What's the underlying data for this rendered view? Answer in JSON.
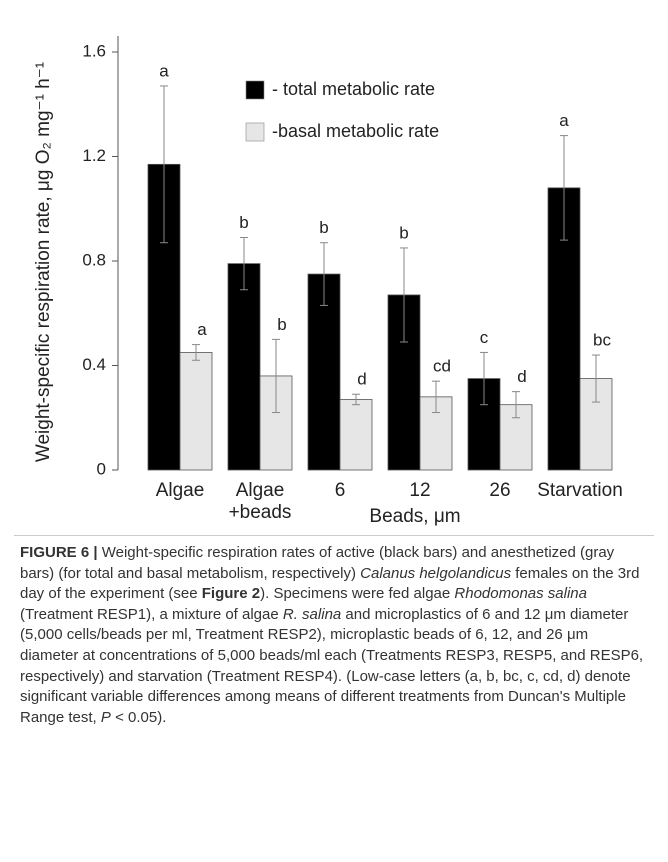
{
  "chart_data": {
    "type": "bar",
    "ylabel": "Weight-specific respiration rate, μg O₂ mg⁻¹ h⁻¹",
    "xlabel": "Beads, μm",
    "categories": [
      "Algae",
      "Algae\n+beads",
      "6",
      "12",
      "26",
      "Starvation"
    ],
    "series": [
      {
        "name": "- total metabolic rate",
        "color": "#000000",
        "values": [
          1.17,
          0.79,
          0.75,
          0.67,
          0.35,
          1.08
        ],
        "errors": [
          0.3,
          0.1,
          0.12,
          0.18,
          0.1,
          0.2
        ],
        "letters": [
          "a",
          "b",
          "b",
          "b",
          "c",
          "a"
        ]
      },
      {
        "name": "-basal metabolic rate",
        "color": "#e6e6e6",
        "values": [
          0.45,
          0.36,
          0.27,
          0.28,
          0.25,
          0.35
        ],
        "errors": [
          0.03,
          0.14,
          0.02,
          0.06,
          0.05,
          0.09
        ],
        "letters": [
          "a",
          "b",
          "d",
          "cd",
          "d",
          "bc"
        ]
      }
    ],
    "ylim": [
      0,
      1.6
    ],
    "yticks": [
      0,
      0.4,
      0.8,
      1.2,
      1.6
    ]
  },
  "caption": [
    "FIGURE 6 |",
    " Weight-specific respiration rates of active (black bars) and anesthetized (gray bars) (for total and basal metabolism, respectively) ",
    "Calanus helgolandicus",
    " females on the 3rd day of the experiment (see ",
    "Figure 2",
    "). Specimens were fed algae ",
    "Rhodomonas salina",
    " (Treatment RESP1), a mixture of algae ",
    "R. salina",
    " and microplastics of 6 and 12 μm diameter (5,000 cells/beads per ml, Treatment RESP2), microplastic beads of 6, 12, and 26 μm diameter at concentrations of 5,000 beads/ml each (Treatments RESP3, RESP5, and RESP6, respectively) and starvation (Treatment RESP4). (Low-case letters (a, b, bc, c, cd, d) denote significant variable differences among means of different treatments from Duncan's Multiple Range test, ",
    "P",
    " < 0.05)."
  ]
}
